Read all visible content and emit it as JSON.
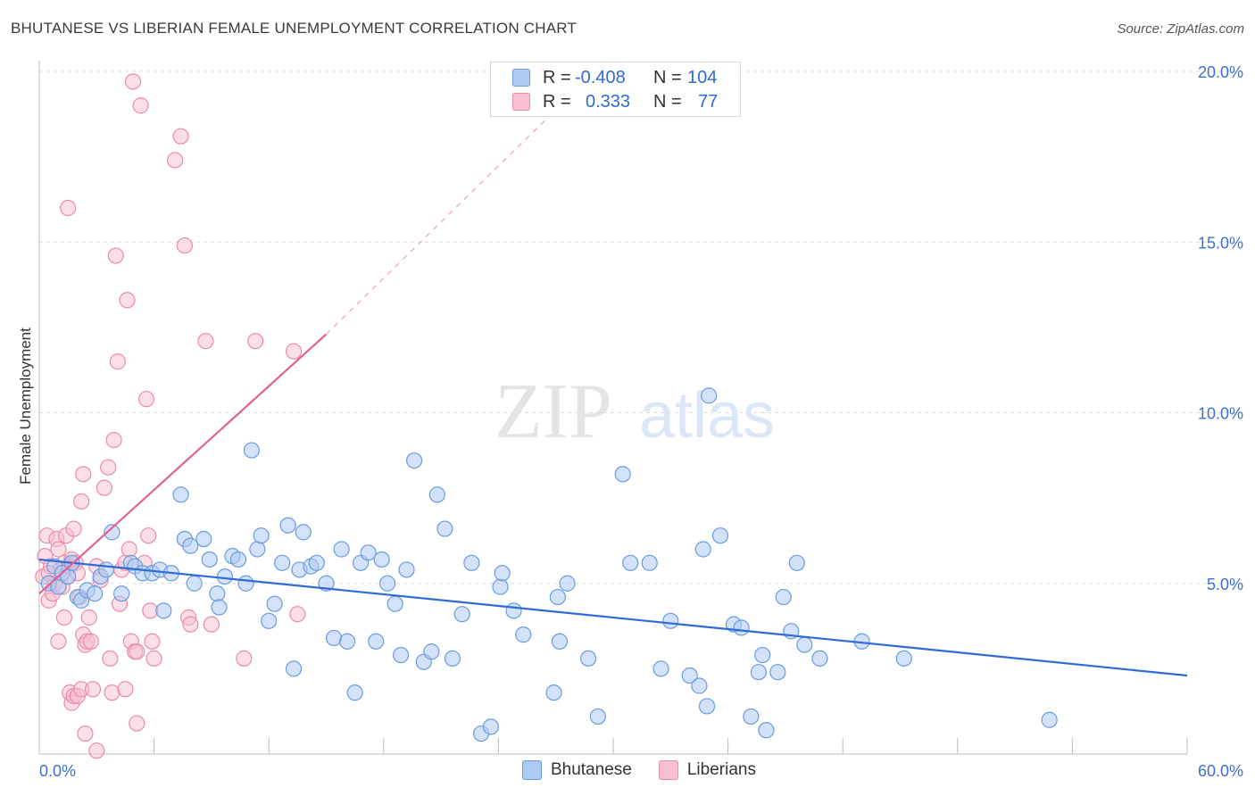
{
  "title": "BHUTANESE VS LIBERIAN FEMALE UNEMPLOYMENT CORRELATION CHART",
  "source": "Source: ZipAtlas.com",
  "watermark": "ZIPatlas",
  "colors": {
    "bhutanese_fill": "#aecbf2",
    "bhutanese_stroke": "#6a9be0",
    "bhutanese_line": "#2f6bd6",
    "liberians_fill": "#f7bfd0",
    "liberians_stroke": "#ec8aa9",
    "liberians_line": "#e0628e",
    "axis_label": "#3b6fd1"
  },
  "legend": {
    "rows": [
      {
        "r_label": "R =",
        "r_value": "-0.408",
        "n_label": "N =",
        "n_value": "104"
      },
      {
        "r_label": "R =",
        "r_value": "0.333",
        "n_label": "N =",
        "n_value": "77"
      }
    ]
  },
  "bottom_legend": [
    "Bhutanese",
    "Liberians"
  ],
  "chart_data": {
    "type": "scatter",
    "title": "BHUTANESE VS LIBERIAN FEMALE UNEMPLOYMENT CORRELATION CHART",
    "xlabel": "",
    "ylabel": "Female Unemployment",
    "xlim": [
      0,
      60
    ],
    "ylim": [
      0,
      20
    ],
    "x_tick_labels": [
      "0.0%",
      "60.0%"
    ],
    "y_ticks": [
      5,
      10,
      15,
      20
    ],
    "y_tick_labels": [
      "5.0%",
      "10.0%",
      "15.0%",
      "20.0%"
    ],
    "grid": true,
    "legend_position": "top-center",
    "series": [
      {
        "name": "Bhutanese",
        "r": -0.408,
        "n": 104,
        "trend": {
          "x": [
            0,
            60
          ],
          "y": [
            5.7,
            2.3
          ]
        },
        "points": [
          [
            0.5,
            5.0
          ],
          [
            0.8,
            5.5
          ],
          [
            1.0,
            4.9
          ],
          [
            1.2,
            5.3
          ],
          [
            1.5,
            5.2
          ],
          [
            1.7,
            5.6
          ],
          [
            2.0,
            4.6
          ],
          [
            2.2,
            4.5
          ],
          [
            2.5,
            4.8
          ],
          [
            2.9,
            4.7
          ],
          [
            3.2,
            5.2
          ],
          [
            3.5,
            5.4
          ],
          [
            3.8,
            6.5
          ],
          [
            4.3,
            4.7
          ],
          [
            4.8,
            5.6
          ],
          [
            5.0,
            5.5
          ],
          [
            5.4,
            5.3
          ],
          [
            5.9,
            5.3
          ],
          [
            6.3,
            5.4
          ],
          [
            6.5,
            4.2
          ],
          [
            6.9,
            5.3
          ],
          [
            7.4,
            7.6
          ],
          [
            7.6,
            6.3
          ],
          [
            7.9,
            6.1
          ],
          [
            8.1,
            5.0
          ],
          [
            8.6,
            6.3
          ],
          [
            8.9,
            5.7
          ],
          [
            9.3,
            4.7
          ],
          [
            9.4,
            4.3
          ],
          [
            9.7,
            5.2
          ],
          [
            10.1,
            5.8
          ],
          [
            10.4,
            5.7
          ],
          [
            10.8,
            5.0
          ],
          [
            11.1,
            8.9
          ],
          [
            11.4,
            6.0
          ],
          [
            11.6,
            6.4
          ],
          [
            12.0,
            3.9
          ],
          [
            12.3,
            4.4
          ],
          [
            12.7,
            5.6
          ],
          [
            13.0,
            6.7
          ],
          [
            13.3,
            2.5
          ],
          [
            13.6,
            5.4
          ],
          [
            13.8,
            6.5
          ],
          [
            14.2,
            5.5
          ],
          [
            14.5,
            5.6
          ],
          [
            15.0,
            5.0
          ],
          [
            15.4,
            3.4
          ],
          [
            15.8,
            6.0
          ],
          [
            16.1,
            3.3
          ],
          [
            16.5,
            1.8
          ],
          [
            16.8,
            5.6
          ],
          [
            17.2,
            5.9
          ],
          [
            17.6,
            3.3
          ],
          [
            17.9,
            5.7
          ],
          [
            18.2,
            5.0
          ],
          [
            18.6,
            4.4
          ],
          [
            18.9,
            2.9
          ],
          [
            19.2,
            5.4
          ],
          [
            19.6,
            8.6
          ],
          [
            20.1,
            2.7
          ],
          [
            20.5,
            3.0
          ],
          [
            20.8,
            7.6
          ],
          [
            21.2,
            6.6
          ],
          [
            21.6,
            2.8
          ],
          [
            22.1,
            4.1
          ],
          [
            22.6,
            5.6
          ],
          [
            23.1,
            0.6
          ],
          [
            23.6,
            0.8
          ],
          [
            24.1,
            4.9
          ],
          [
            24.2,
            5.3
          ],
          [
            24.8,
            4.2
          ],
          [
            25.3,
            3.5
          ],
          [
            26.9,
            1.8
          ],
          [
            27.1,
            4.6
          ],
          [
            27.2,
            3.3
          ],
          [
            27.6,
            5.0
          ],
          [
            28.7,
            2.8
          ],
          [
            29.2,
            1.1
          ],
          [
            30.5,
            8.2
          ],
          [
            30.9,
            5.6
          ],
          [
            31.9,
            5.6
          ],
          [
            32.5,
            2.5
          ],
          [
            33.0,
            3.9
          ],
          [
            34.0,
            2.3
          ],
          [
            34.5,
            2.0
          ],
          [
            34.7,
            6.0
          ],
          [
            34.9,
            1.4
          ],
          [
            35.0,
            10.5
          ],
          [
            35.6,
            6.4
          ],
          [
            36.3,
            3.8
          ],
          [
            36.7,
            3.7
          ],
          [
            37.2,
            1.1
          ],
          [
            37.6,
            2.4
          ],
          [
            37.8,
            2.9
          ],
          [
            38.0,
            0.7
          ],
          [
            38.6,
            2.4
          ],
          [
            38.9,
            4.6
          ],
          [
            39.3,
            3.6
          ],
          [
            39.6,
            5.6
          ],
          [
            40.0,
            3.2
          ],
          [
            40.8,
            2.8
          ],
          [
            43.0,
            3.3
          ],
          [
            45.2,
            2.8
          ],
          [
            52.8,
            1.0
          ]
        ]
      },
      {
        "name": "Liberians",
        "r": 0.333,
        "n": 77,
        "trend": {
          "x": [
            0,
            15.0
          ],
          "y": [
            4.7,
            12.3
          ]
        },
        "trend_extension": {
          "x": [
            15.0,
            26.5
          ],
          "y": [
            12.3,
            18.6
          ]
        },
        "points": [
          [
            0.2,
            5.2
          ],
          [
            0.3,
            5.8
          ],
          [
            0.4,
            6.4
          ],
          [
            0.5,
            4.5
          ],
          [
            0.6,
            5.5
          ],
          [
            0.7,
            4.7
          ],
          [
            0.8,
            5.0
          ],
          [
            0.9,
            6.3
          ],
          [
            1.0,
            6.0
          ],
          [
            1.1,
            5.4
          ],
          [
            1.2,
            4.9
          ],
          [
            1.3,
            5.6
          ],
          [
            1.4,
            6.4
          ],
          [
            1.5,
            5.2
          ],
          [
            1.6,
            5.5
          ],
          [
            1.7,
            5.7
          ],
          [
            1.8,
            6.6
          ],
          [
            1.9,
            5.6
          ],
          [
            2.0,
            5.3
          ],
          [
            0.5,
            5.3
          ],
          [
            1.0,
            3.3
          ],
          [
            1.3,
            4.0
          ],
          [
            1.5,
            16.0
          ],
          [
            1.6,
            1.8
          ],
          [
            1.7,
            1.5
          ],
          [
            1.8,
            1.7
          ],
          [
            2.0,
            1.7
          ],
          [
            2.1,
            4.6
          ],
          [
            2.2,
            1.9
          ],
          [
            2.3,
            3.5
          ],
          [
            2.4,
            3.2
          ],
          [
            2.2,
            7.4
          ],
          [
            2.3,
            8.2
          ],
          [
            2.4,
            0.6
          ],
          [
            2.5,
            3.3
          ],
          [
            2.6,
            4.0
          ],
          [
            2.7,
            3.3
          ],
          [
            2.8,
            1.9
          ],
          [
            3.0,
            0.1
          ],
          [
            3.0,
            5.5
          ],
          [
            3.2,
            5.1
          ],
          [
            3.4,
            7.8
          ],
          [
            3.6,
            8.4
          ],
          [
            3.7,
            2.8
          ],
          [
            3.8,
            1.8
          ],
          [
            3.9,
            9.2
          ],
          [
            4.0,
            14.6
          ],
          [
            4.1,
            11.5
          ],
          [
            4.2,
            4.4
          ],
          [
            4.3,
            5.4
          ],
          [
            4.5,
            5.6
          ],
          [
            4.5,
            1.9
          ],
          [
            4.6,
            13.3
          ],
          [
            4.7,
            6.0
          ],
          [
            4.8,
            3.3
          ],
          [
            4.9,
            19.7
          ],
          [
            5.0,
            3.0
          ],
          [
            5.1,
            3.0
          ],
          [
            5.1,
            0.9
          ],
          [
            5.3,
            19.0
          ],
          [
            5.5,
            5.6
          ],
          [
            5.6,
            10.4
          ],
          [
            5.7,
            6.4
          ],
          [
            5.8,
            4.2
          ],
          [
            5.9,
            3.3
          ],
          [
            6.0,
            2.8
          ],
          [
            7.1,
            17.4
          ],
          [
            7.4,
            18.1
          ],
          [
            7.6,
            14.9
          ],
          [
            7.8,
            4.0
          ],
          [
            7.9,
            3.8
          ],
          [
            8.7,
            12.1
          ],
          [
            9.0,
            3.8
          ],
          [
            10.7,
            2.8
          ],
          [
            11.3,
            12.1
          ],
          [
            13.3,
            11.8
          ],
          [
            13.5,
            4.1
          ]
        ]
      }
    ]
  }
}
